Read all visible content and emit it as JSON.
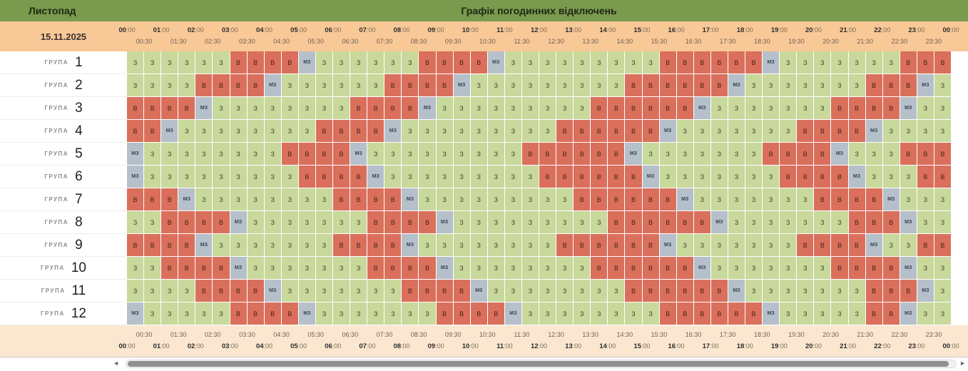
{
  "title_bar": {
    "month": "Листопад",
    "title": "Графік погодинних відключень"
  },
  "date_header": {
    "date": "15.11.2025"
  },
  "time": {
    "hours": [
      "00:00",
      "01:00",
      "02:00",
      "03:00",
      "04:00",
      "05:00",
      "06:00",
      "07:00",
      "08:00",
      "09:00",
      "10:00",
      "11:00",
      "12:00",
      "13:00",
      "14:00",
      "15:00",
      "16:00",
      "17:00",
      "18:00",
      "19:00",
      "20:00",
      "21:00",
      "22:00",
      "23:00",
      "00:00"
    ],
    "half_hours": [
      "00:30",
      "01:30",
      "02:30",
      "03:30",
      "04:30",
      "05:30",
      "06:30",
      "07:30",
      "08:30",
      "09:30",
      "10:30",
      "11:30",
      "12:30",
      "13:30",
      "14:30",
      "15:30",
      "16:30",
      "17:30",
      "18:30",
      "19:30",
      "20:30",
      "21:30",
      "22:30",
      "23:30"
    ]
  },
  "states": {
    "powered": "З",
    "outage": "В",
    "maybe": "МЗ"
  },
  "colors": {
    "header_green": "#7a9a4e",
    "band_orange": "#f9c897",
    "footer_peach": "#fbe7d0",
    "cell_powered_green": "#c9d89b",
    "cell_outage_red": "#da705c",
    "cell_maybe_gray": "#b6c0cb"
  },
  "grid": {
    "group_word": "ГРУПА",
    "groups": [
      {
        "number": "1",
        "cells": [
          "З",
          "З",
          "З",
          "З",
          "З",
          "З",
          "В",
          "В",
          "В",
          "В",
          "МЗ",
          "З",
          "З",
          "З",
          "З",
          "З",
          "З",
          "В",
          "В",
          "В",
          "В",
          "МЗ",
          "З",
          "З",
          "З",
          "З",
          "З",
          "З",
          "З",
          "З",
          "З",
          "В",
          "В",
          "В",
          "В",
          "В",
          "В",
          "МЗ",
          "З",
          "З",
          "З",
          "З",
          "З",
          "З",
          "З",
          "В",
          "В",
          "В"
        ]
      },
      {
        "number": "2",
        "cells": [
          "З",
          "З",
          "З",
          "З",
          "В",
          "В",
          "В",
          "В",
          "МЗ",
          "З",
          "З",
          "З",
          "З",
          "З",
          "З",
          "В",
          "В",
          "В",
          "В",
          "МЗ",
          "З",
          "З",
          "З",
          "З",
          "З",
          "З",
          "З",
          "З",
          "З",
          "В",
          "В",
          "В",
          "В",
          "В",
          "В",
          "МЗ",
          "З",
          "З",
          "З",
          "З",
          "З",
          "З",
          "З",
          "В",
          "В",
          "В",
          "МЗ",
          "З"
        ]
      },
      {
        "number": "3",
        "cells": [
          "В",
          "В",
          "В",
          "В",
          "МЗ",
          "З",
          "З",
          "З",
          "З",
          "З",
          "З",
          "З",
          "З",
          "В",
          "В",
          "В",
          "В",
          "МЗ",
          "З",
          "З",
          "З",
          "З",
          "З",
          "З",
          "З",
          "З",
          "З",
          "В",
          "В",
          "В",
          "В",
          "В",
          "В",
          "МЗ",
          "З",
          "З",
          "З",
          "З",
          "З",
          "З",
          "З",
          "В",
          "В",
          "В",
          "В",
          "МЗ",
          "З",
          "З"
        ]
      },
      {
        "number": "4",
        "cells": [
          "В",
          "В",
          "МЗ",
          "З",
          "З",
          "З",
          "З",
          "З",
          "З",
          "З",
          "З",
          "В",
          "В",
          "В",
          "В",
          "МЗ",
          "З",
          "З",
          "З",
          "З",
          "З",
          "З",
          "З",
          "З",
          "З",
          "В",
          "В",
          "В",
          "В",
          "В",
          "В",
          "МЗ",
          "З",
          "З",
          "З",
          "З",
          "З",
          "З",
          "З",
          "В",
          "В",
          "В",
          "В",
          "МЗ",
          "З",
          "З",
          "З",
          "З"
        ]
      },
      {
        "number": "5",
        "cells": [
          "МЗ",
          "З",
          "З",
          "З",
          "З",
          "З",
          "З",
          "З",
          "З",
          "В",
          "В",
          "В",
          "В",
          "МЗ",
          "З",
          "З",
          "З",
          "З",
          "З",
          "З",
          "З",
          "З",
          "З",
          "В",
          "В",
          "В",
          "В",
          "В",
          "В",
          "МЗ",
          "З",
          "З",
          "З",
          "З",
          "З",
          "З",
          "З",
          "В",
          "В",
          "В",
          "В",
          "МЗ",
          "З",
          "З",
          "З",
          "В",
          "В",
          "В"
        ]
      },
      {
        "number": "6",
        "cells": [
          "МЗ",
          "З",
          "З",
          "З",
          "З",
          "З",
          "З",
          "З",
          "З",
          "З",
          "В",
          "В",
          "В",
          "В",
          "МЗ",
          "З",
          "З",
          "З",
          "З",
          "З",
          "З",
          "З",
          "З",
          "З",
          "В",
          "В",
          "В",
          "В",
          "В",
          "В",
          "МЗ",
          "З",
          "З",
          "З",
          "З",
          "З",
          "З",
          "З",
          "В",
          "В",
          "В",
          "В",
          "МЗ",
          "З",
          "З",
          "З",
          "В",
          "В"
        ]
      },
      {
        "number": "7",
        "cells": [
          "В",
          "В",
          "В",
          "МЗ",
          "З",
          "З",
          "З",
          "З",
          "З",
          "З",
          "З",
          "З",
          "В",
          "В",
          "В",
          "В",
          "МЗ",
          "З",
          "З",
          "З",
          "З",
          "З",
          "З",
          "З",
          "З",
          "З",
          "В",
          "В",
          "В",
          "В",
          "В",
          "В",
          "МЗ",
          "З",
          "З",
          "З",
          "З",
          "З",
          "З",
          "З",
          "В",
          "В",
          "В",
          "В",
          "МЗ",
          "З",
          "З",
          "З"
        ]
      },
      {
        "number": "8",
        "cells": [
          "З",
          "З",
          "В",
          "В",
          "В",
          "В",
          "МЗ",
          "З",
          "З",
          "З",
          "З",
          "З",
          "З",
          "З",
          "В",
          "В",
          "В",
          "В",
          "МЗ",
          "З",
          "З",
          "З",
          "З",
          "З",
          "З",
          "З",
          "З",
          "З",
          "В",
          "В",
          "В",
          "В",
          "В",
          "В",
          "МЗ",
          "З",
          "З",
          "З",
          "З",
          "З",
          "З",
          "З",
          "В",
          "В",
          "В",
          "МЗ",
          "З",
          "З"
        ]
      },
      {
        "number": "9",
        "cells": [
          "В",
          "В",
          "В",
          "В",
          "МЗ",
          "З",
          "З",
          "З",
          "З",
          "З",
          "З",
          "З",
          "В",
          "В",
          "В",
          "В",
          "МЗ",
          "З",
          "З",
          "З",
          "З",
          "З",
          "З",
          "З",
          "З",
          "В",
          "В",
          "В",
          "В",
          "В",
          "В",
          "МЗ",
          "З",
          "З",
          "З",
          "З",
          "З",
          "З",
          "З",
          "В",
          "В",
          "В",
          "В",
          "МЗ",
          "З",
          "З",
          "В",
          "В"
        ]
      },
      {
        "number": "10",
        "cells": [
          "З",
          "З",
          "В",
          "В",
          "В",
          "В",
          "МЗ",
          "З",
          "З",
          "З",
          "З",
          "З",
          "З",
          "З",
          "В",
          "В",
          "В",
          "В",
          "МЗ",
          "З",
          "З",
          "З",
          "З",
          "З",
          "З",
          "З",
          "З",
          "В",
          "В",
          "В",
          "В",
          "В",
          "В",
          "МЗ",
          "З",
          "З",
          "З",
          "З",
          "З",
          "З",
          "З",
          "В",
          "В",
          "В",
          "В",
          "МЗ",
          "З",
          "З"
        ]
      },
      {
        "number": "11",
        "cells": [
          "З",
          "З",
          "З",
          "З",
          "В",
          "В",
          "В",
          "В",
          "МЗ",
          "З",
          "З",
          "З",
          "З",
          "З",
          "З",
          "З",
          "В",
          "В",
          "В",
          "В",
          "МЗ",
          "З",
          "З",
          "З",
          "З",
          "З",
          "З",
          "З",
          "З",
          "В",
          "В",
          "В",
          "В",
          "В",
          "В",
          "МЗ",
          "З",
          "З",
          "З",
          "З",
          "З",
          "З",
          "З",
          "В",
          "В",
          "В",
          "МЗ",
          "З"
        ]
      },
      {
        "number": "12",
        "cells": [
          "МЗ",
          "З",
          "З",
          "З",
          "З",
          "З",
          "В",
          "В",
          "В",
          "В",
          "МЗ",
          "З",
          "З",
          "З",
          "З",
          "З",
          "З",
          "З",
          "В",
          "В",
          "В",
          "В",
          "МЗ",
          "З",
          "З",
          "З",
          "З",
          "З",
          "З",
          "З",
          "З",
          "В",
          "В",
          "В",
          "В",
          "В",
          "В",
          "МЗ",
          "З",
          "З",
          "З",
          "З",
          "З",
          "В",
          "В",
          "МЗ",
          "З",
          "З"
        ]
      }
    ]
  },
  "scrollbar": {
    "left_icon": "◄",
    "right_icon": "►"
  }
}
